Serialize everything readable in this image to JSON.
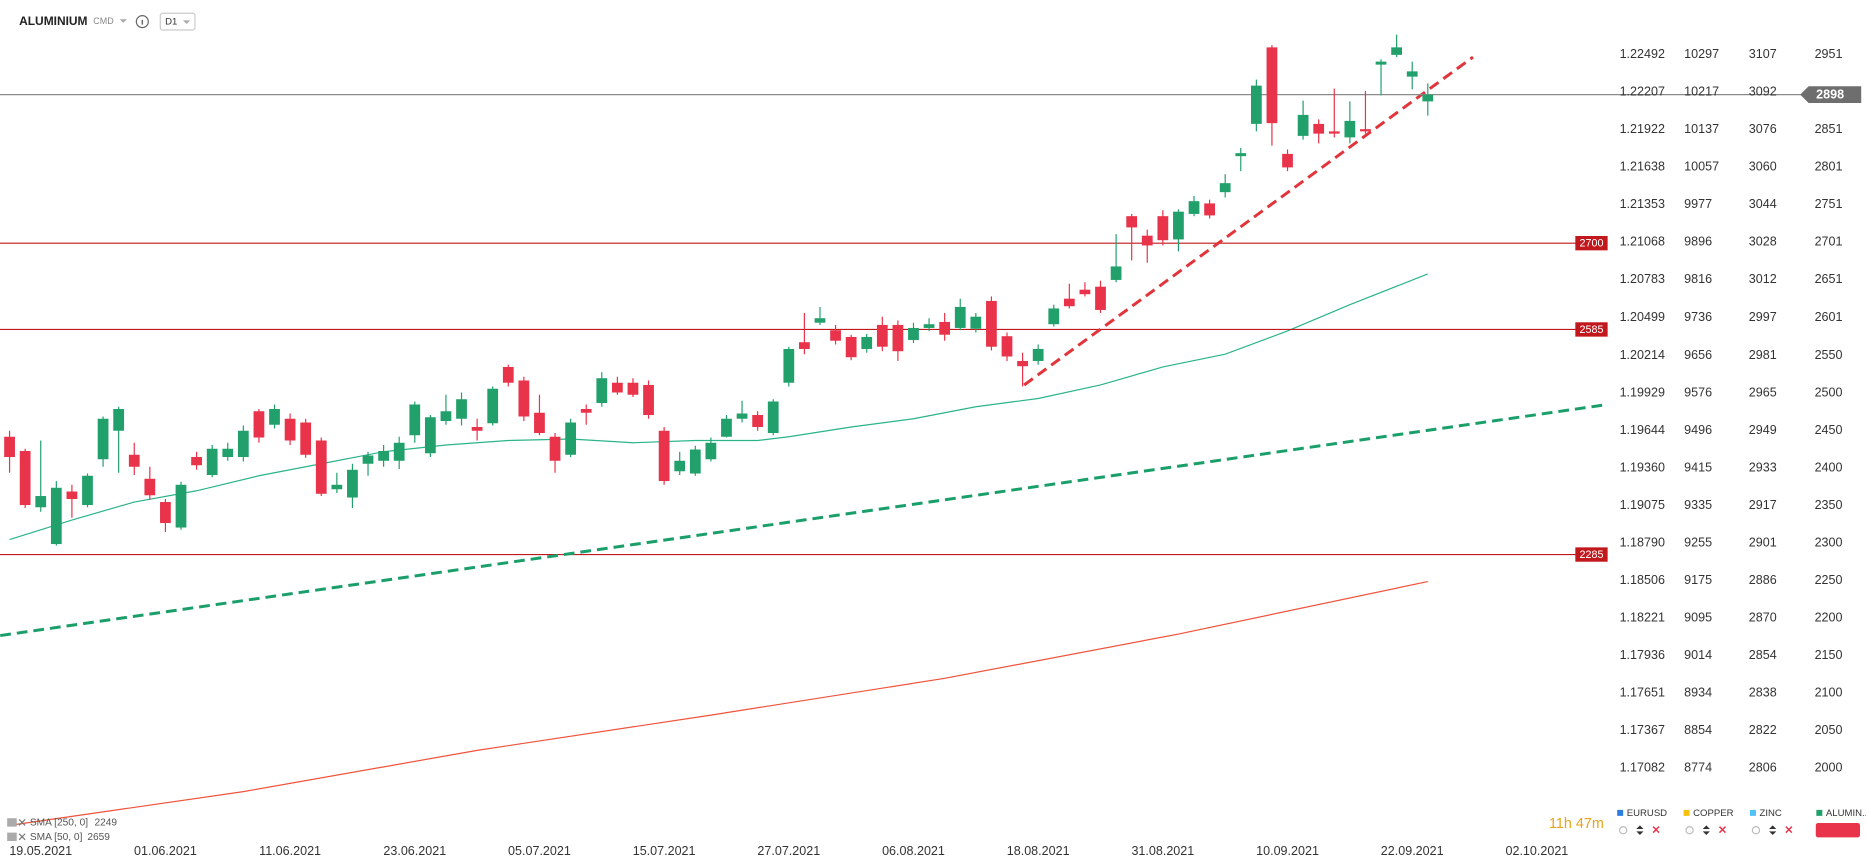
{
  "header": {
    "symbol": "ALUMINIUM",
    "market": "CMD",
    "interval": "D1"
  },
  "chart_data": {
    "type": "candlestick",
    "up_color": "#22a06b",
    "down_color": "#e8334a",
    "xlim": [
      -0.614,
      103
    ],
    "xticks": [
      {
        "value": 2,
        "label": "19.05.2021"
      },
      {
        "value": 10,
        "label": "01.06.2021"
      },
      {
        "value": 18,
        "label": "11.06.2021"
      },
      {
        "value": 26,
        "label": "23.06.2021"
      },
      {
        "value": 34,
        "label": "05.07.2021"
      },
      {
        "value": 42,
        "label": "15.07.2021"
      },
      {
        "value": 50,
        "label": "27.07.2021"
      },
      {
        "value": 58,
        "label": "06.08.2021"
      },
      {
        "value": 66,
        "label": "18.08.2021"
      },
      {
        "value": 74,
        "label": "31.08.2021"
      },
      {
        "value": 82,
        "label": "10.09.2021"
      },
      {
        "value": 90,
        "label": "22.09.2021"
      },
      {
        "value": 98,
        "label": "02.10.2021"
      }
    ],
    "ylim": [
      1908,
      3024
    ],
    "yticks": [
      2951,
      2901,
      2851,
      2801,
      2751,
      2701,
      2651,
      2601,
      2550,
      2500,
      2450,
      2400,
      2350,
      2300,
      2250,
      2200,
      2150,
      2100,
      2050,
      2000
    ],
    "open": [
      2442,
      2423,
      2348,
      2299,
      2369,
      2351,
      2412,
      2450,
      2418,
      2386,
      2355,
      2321,
      2415,
      2391,
      2415,
      2415,
      2476,
      2458,
      2466,
      2461,
      2437,
      2372,
      2361,
      2406,
      2410,
      2410,
      2444,
      2420,
      2463,
      2466,
      2455,
      2460,
      2535,
      2517,
      2474,
      2442,
      2418,
      2479,
      2487,
      2514,
      2514,
      2511,
      2450,
      2396,
      2393,
      2412,
      2442,
      2466,
      2471,
      2447,
      2514,
      2568,
      2594,
      2584,
      2575,
      2559,
      2591,
      2591,
      2571,
      2587,
      2595,
      2587,
      2586,
      2623,
      2576,
      2543,
      2543,
      2592,
      2626,
      2638,
      2642,
      2651,
      2736,
      2710,
      2736,
      2705,
      2739,
      2753,
      2768,
      2816,
      2859,
      2961,
      2819,
      2843,
      2859,
      2849,
      2841,
      2852,
      2938,
      2951,
      2922,
      2889
    ],
    "high": [
      2450,
      2426,
      2437,
      2383,
      2378,
      2393,
      2469,
      2482,
      2434,
      2402,
      2359,
      2382,
      2422,
      2431,
      2434,
      2457,
      2479,
      2485,
      2473,
      2466,
      2441,
      2394,
      2406,
      2422,
      2431,
      2442,
      2489,
      2471,
      2498,
      2501,
      2466,
      2509,
      2538,
      2522,
      2498,
      2447,
      2466,
      2485,
      2528,
      2522,
      2520,
      2517,
      2455,
      2422,
      2430,
      2441,
      2471,
      2490,
      2476,
      2492,
      2562,
      2607,
      2615,
      2591,
      2578,
      2579,
      2602,
      2597,
      2594,
      2600,
      2607,
      2626,
      2607,
      2629,
      2581,
      2554,
      2565,
      2618,
      2646,
      2648,
      2650,
      2712,
      2739,
      2718,
      2744,
      2745,
      2763,
      2758,
      2792,
      2827,
      2918,
      2964,
      2825,
      2890,
      2865,
      2906,
      2889,
      2903,
      2945,
      2978,
      2942,
      2913
    ],
    "low": [
      2394,
      2347,
      2342,
      2297,
      2334,
      2348,
      2402,
      2394,
      2391,
      2358,
      2315,
      2318,
      2398,
      2388,
      2410,
      2409,
      2434,
      2453,
      2431,
      2414,
      2363,
      2367,
      2347,
      2390,
      2402,
      2399,
      2434,
      2415,
      2458,
      2457,
      2437,
      2457,
      2509,
      2463,
      2444,
      2394,
      2415,
      2458,
      2482,
      2498,
      2495,
      2466,
      2378,
      2391,
      2390,
      2409,
      2441,
      2461,
      2450,
      2444,
      2509,
      2552,
      2591,
      2565,
      2544,
      2554,
      2556,
      2543,
      2567,
      2583,
      2570,
      2584,
      2581,
      2557,
      2543,
      2509,
      2538,
      2589,
      2613,
      2629,
      2607,
      2648,
      2677,
      2674,
      2697,
      2689,
      2736,
      2733,
      2761,
      2796,
      2849,
      2830,
      2796,
      2838,
      2833,
      2841,
      2833,
      2846,
      2897,
      2948,
      2905,
      2870
    ],
    "close": [
      2415,
      2351,
      2363,
      2374,
      2359,
      2390,
      2466,
      2479,
      2402,
      2364,
      2327,
      2378,
      2404,
      2426,
      2426,
      2450,
      2441,
      2479,
      2437,
      2418,
      2366,
      2378,
      2398,
      2417,
      2423,
      2434,
      2485,
      2468,
      2476,
      2492,
      2450,
      2506,
      2514,
      2469,
      2447,
      2410,
      2461,
      2474,
      2520,
      2501,
      2498,
      2471,
      2383,
      2410,
      2425,
      2434,
      2466,
      2473,
      2455,
      2489,
      2559,
      2559,
      2600,
      2570,
      2548,
      2575,
      2562,
      2556,
      2587,
      2592,
      2578,
      2615,
      2602,
      2562,
      2549,
      2536,
      2559,
      2613,
      2616,
      2632,
      2611,
      2669,
      2721,
      2697,
      2704,
      2742,
      2756,
      2737,
      2780,
      2820,
      2910,
      2860,
      2801,
      2871,
      2846,
      2846,
      2863,
      2849,
      2942,
      2961,
      2929,
      2898
    ],
    "price_line_color": "#8a8a8a",
    "levels": [
      2700,
      2585,
      2285
    ],
    "level_color": "#c0181d",
    "sma": [
      {
        "name": "SMA [250, 0]",
        "color": "#f0523a",
        "x": [
          0,
          15,
          30,
          45,
          60,
          75,
          91
        ],
        "values": [
          1924,
          1969,
          2024,
          2071,
          2120,
          2179,
          2249
        ]
      },
      {
        "name": "SMA [50, 0]",
        "color": "#2bb38a",
        "x": [
          0,
          4,
          8,
          12,
          16,
          20,
          24,
          28,
          32,
          36,
          40,
          44,
          48,
          50,
          54,
          58,
          62,
          66,
          70,
          74,
          78,
          82,
          86,
          91
        ],
        "values": [
          2305,
          2331,
          2355,
          2370,
          2390,
          2406,
          2422,
          2431,
          2437,
          2439,
          2434,
          2437,
          2437,
          2442,
          2455,
          2466,
          2482,
          2493,
          2511,
          2535,
          2552,
          2583,
          2618,
          2659
        ]
      }
    ],
    "trendlines": [
      {
        "color": "#1a9e6a",
        "x": [
          -0.6,
          102.2
        ],
        "values": [
          2177,
          2484
        ]
      },
      {
        "color": "#e2343b",
        "x": [
          65.1,
          93.9
        ],
        "values": [
          2511,
          2948
        ]
      }
    ],
    "instruments": [
      {
        "name": "EURUSD",
        "color": "#2a7de1",
        "ticks": [
          1.22492,
          1.22207,
          1.21922,
          1.21638,
          1.21353,
          1.21068,
          1.20783,
          1.20499,
          1.20214,
          1.19929,
          1.19644,
          {
            "value": 1.1936,
            "label": "1.19360"
          },
          1.19075,
          {
            "value": 1.1879,
            "label": "1.18790"
          },
          1.18506,
          1.18221,
          1.17936,
          1.17651,
          1.17367,
          1.17082
        ]
      },
      {
        "name": "COPPER",
        "color": "#f4c20d",
        "ticks": [
          10297,
          10217,
          10137,
          10057,
          9977,
          9896,
          9816,
          9736,
          9656,
          9576,
          9496,
          9415,
          9335,
          9255,
          9175,
          9095,
          9014,
          8934,
          8854,
          8774
        ]
      },
      {
        "name": "ZINC",
        "color": "#4fc3f7",
        "ticks": [
          3107,
          3092,
          3076,
          3060,
          3044,
          3028,
          3012,
          2997,
          2981,
          2965,
          2949,
          2933,
          2917,
          2901,
          2886,
          2870,
          2854,
          2838,
          2822,
          2806
        ]
      },
      {
        "name": "ALUMIN..",
        "color": "#22a06b"
      }
    ],
    "countdown": "11h 47m"
  }
}
